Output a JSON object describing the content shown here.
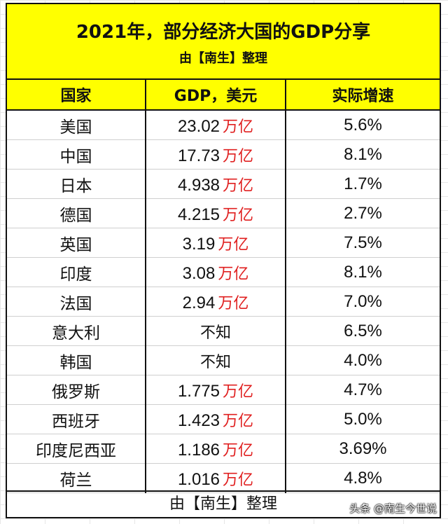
{
  "title": "2021年，部分经济大国的GDP分享",
  "subtitle": "由【南生】整理",
  "headers": [
    "国家",
    "GDP，美元",
    "实际增速"
  ],
  "unit_label": "万亿",
  "rows": [
    {
      "country": "美国",
      "gdp": "23.02",
      "growth": "5.6%"
    },
    {
      "country": "中国",
      "gdp": "17.73",
      "growth": "8.1%"
    },
    {
      "country": "日本",
      "gdp": "4.938",
      "growth": "1.7%"
    },
    {
      "country": "德国",
      "gdp": "4.215",
      "growth": "2.7%"
    },
    {
      "country": "英国",
      "gdp": "3.19",
      "growth": "7.5%"
    },
    {
      "country": "印度",
      "gdp": "3.08",
      "growth": "8.1%"
    },
    {
      "country": "法国",
      "gdp": "2.94",
      "growth": "7.0%"
    },
    {
      "country": "意大利",
      "gdp": "不知",
      "growth": "6.5%"
    },
    {
      "country": "韩国",
      "gdp": "不知",
      "growth": "4.0%"
    },
    {
      "country": "俄罗斯",
      "gdp": "1.775",
      "growth": "4.7%"
    },
    {
      "country": "西班牙",
      "gdp": "1.423",
      "growth": "5.0%"
    },
    {
      "country": "印度尼西亚",
      "gdp": "1.186",
      "growth": "3.69%"
    },
    {
      "country": "荷兰",
      "gdp": "1.016",
      "growth": "4.8%"
    }
  ],
  "footer": "由【南生】整理",
  "watermark": "头条 @南生今世说",
  "colors": {
    "header_bg": "#ffff00",
    "unit_text": "#e02020",
    "border": "#111111"
  }
}
